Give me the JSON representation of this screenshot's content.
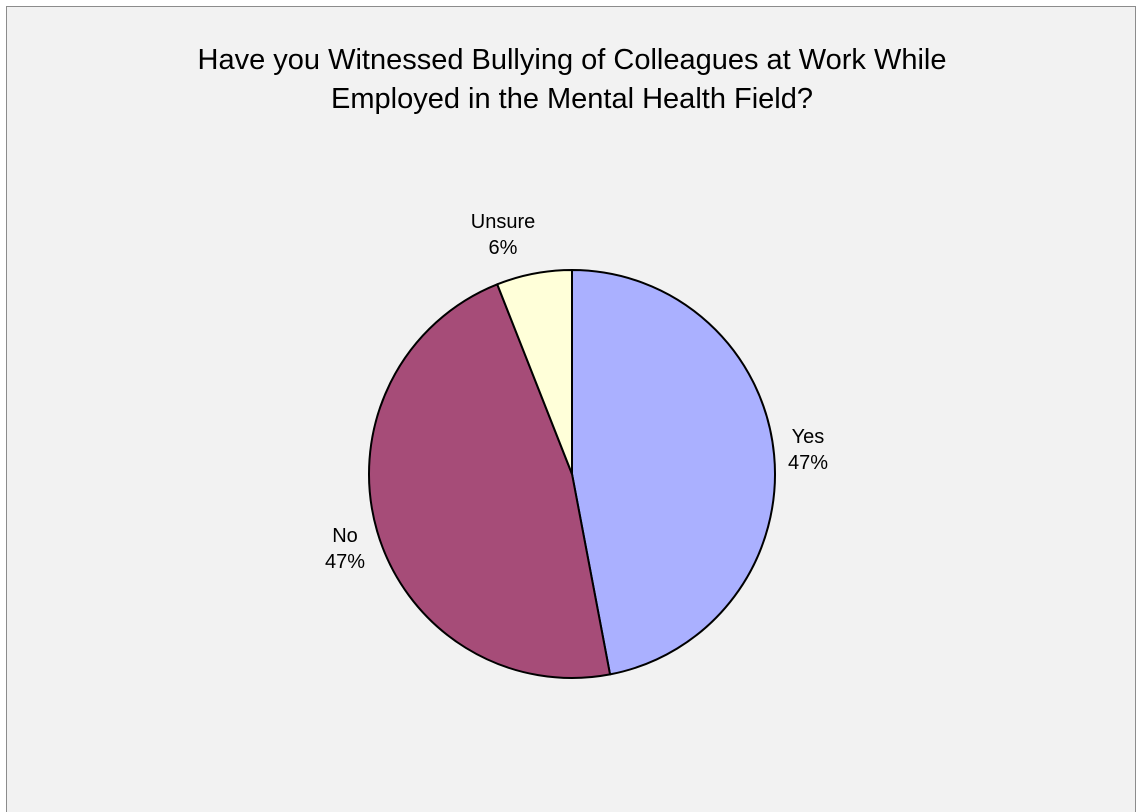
{
  "chart_data": {
    "type": "pie",
    "title_lines": [
      "Have you Witnessed Bullying of Colleagues at Work While",
      "Employed in the Mental Health Field?"
    ],
    "legend": "none",
    "slices": [
      {
        "label": "Yes",
        "value": 47,
        "value_label": "47%",
        "color": "#aab0ff"
      },
      {
        "label": "No",
        "value": 47,
        "value_label": "47%",
        "color": "#a64c78"
      },
      {
        "label": "Unsure",
        "value": 6,
        "value_label": "6%",
        "color": "#ffffd9"
      }
    ]
  }
}
